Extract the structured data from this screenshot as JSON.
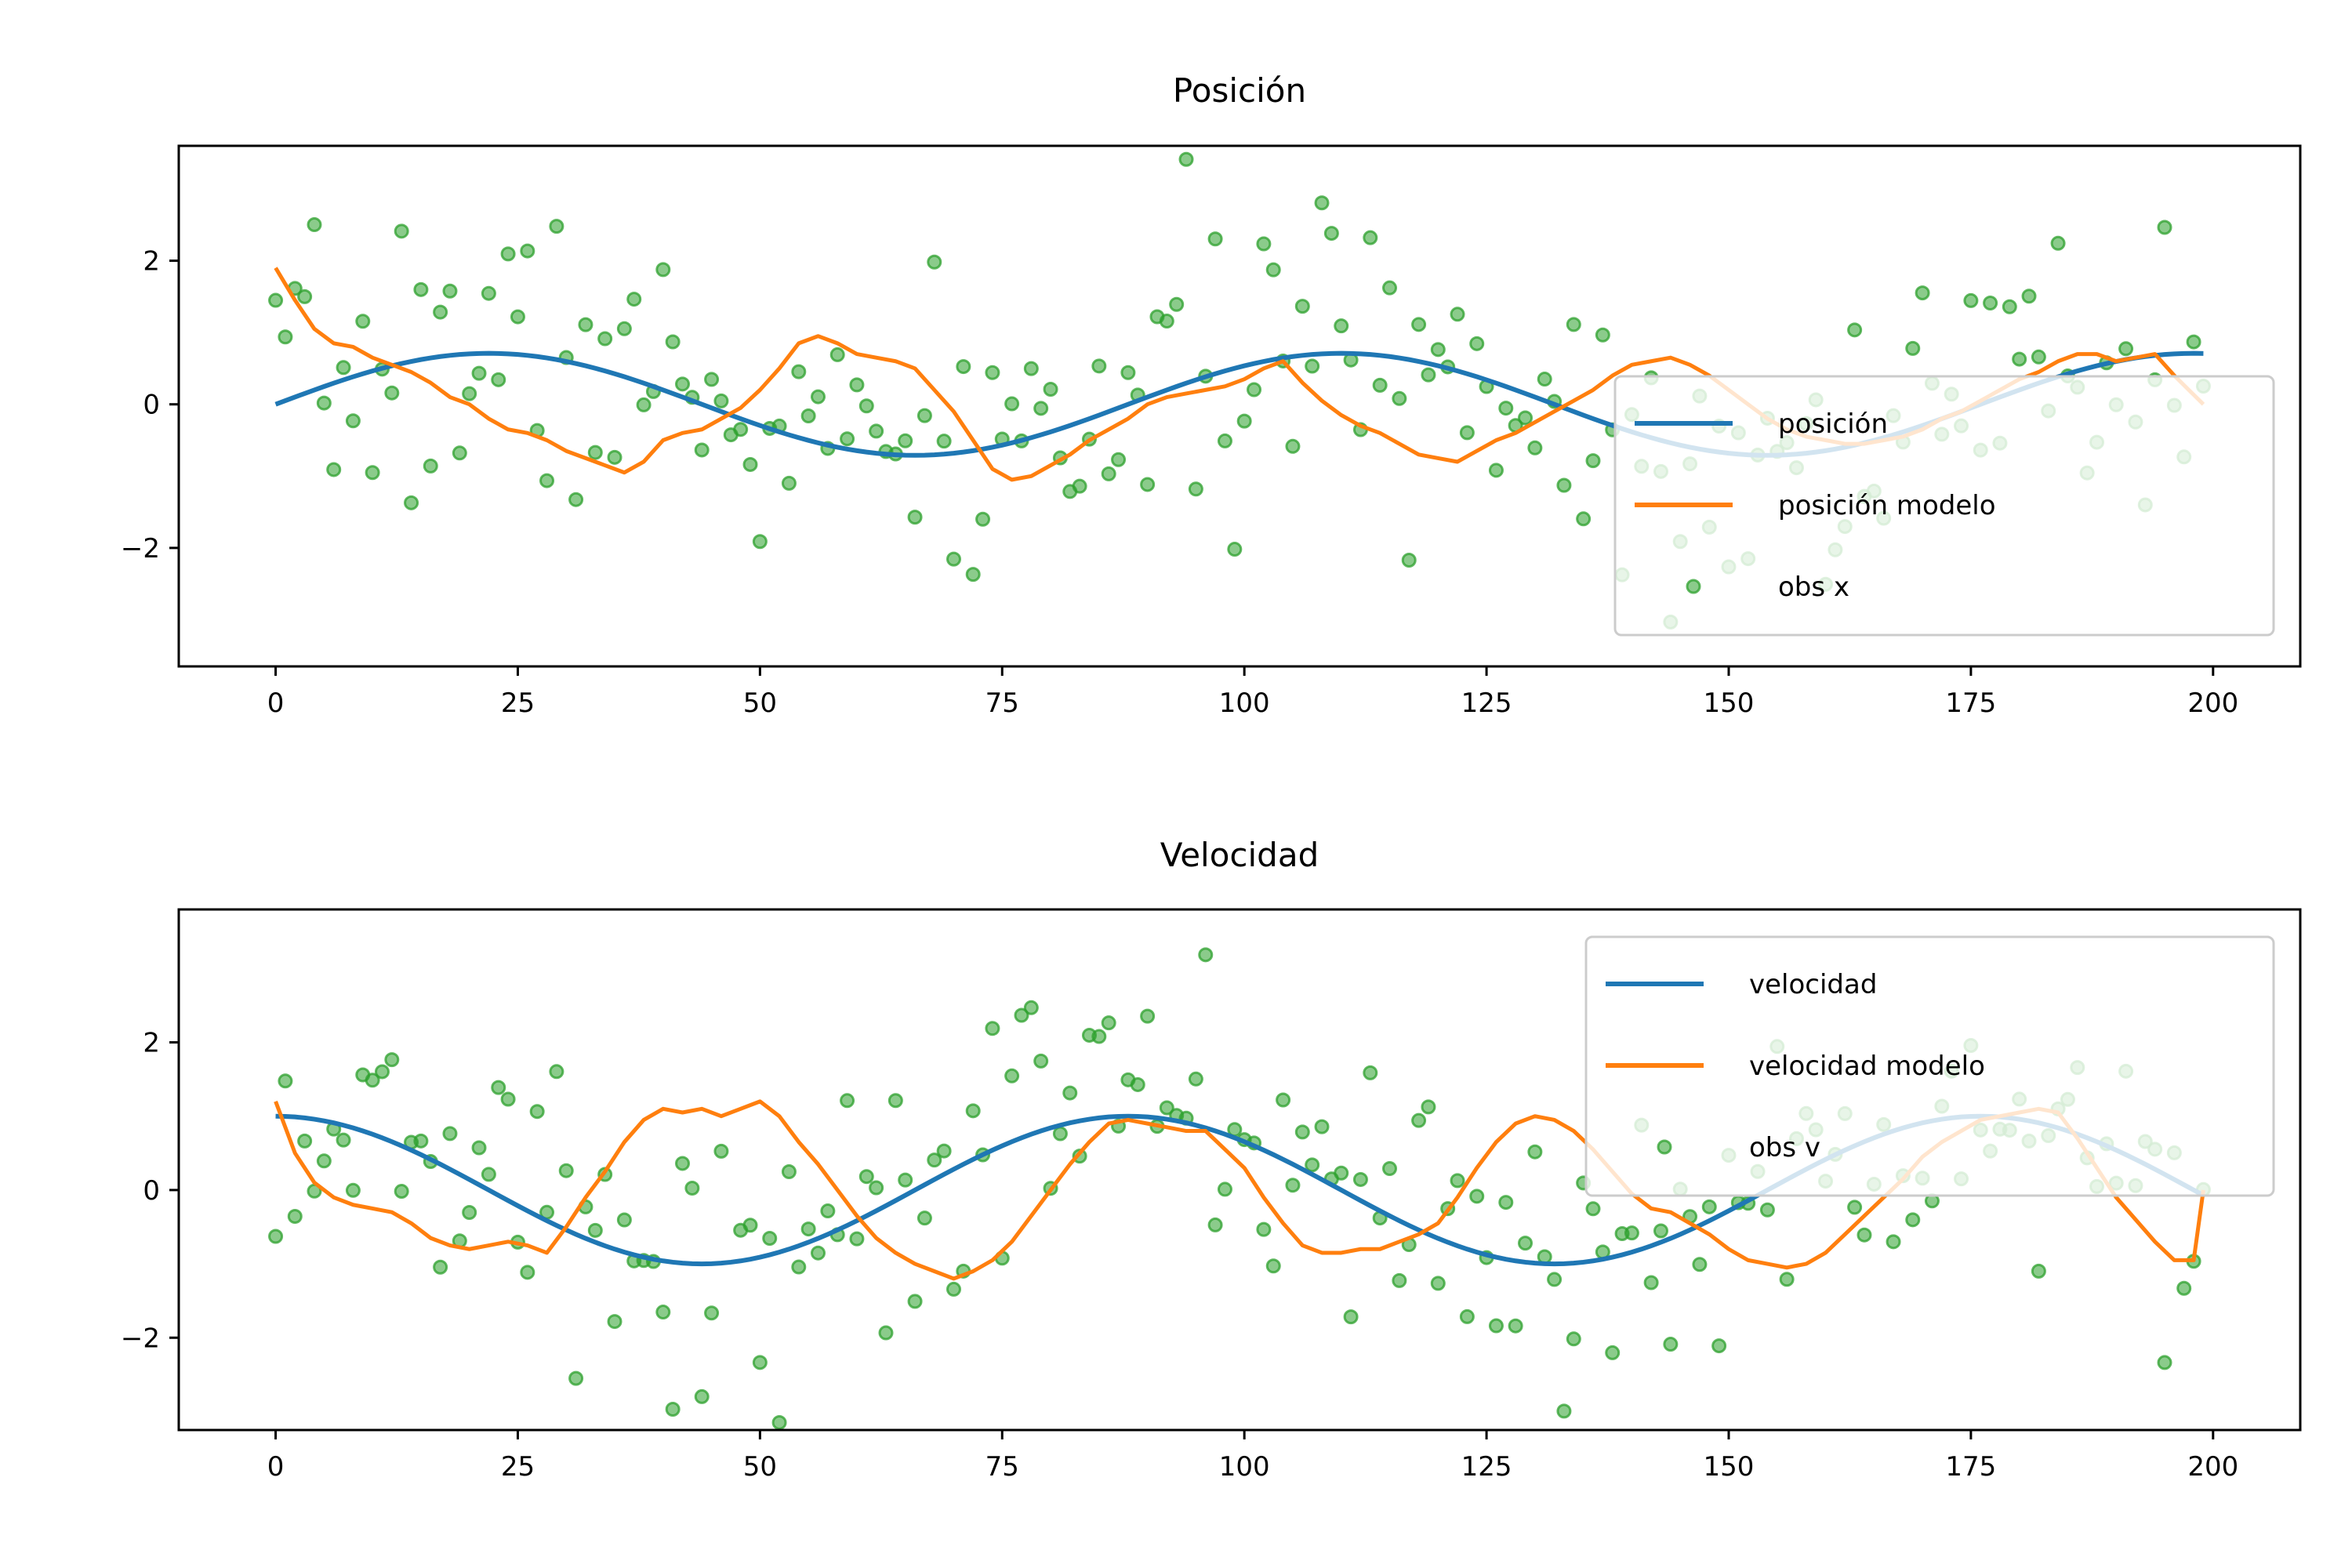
{
  "chart_data": [
    {
      "type": "line",
      "title": "Posición",
      "xlabel": "",
      "ylabel": "",
      "xlim": [
        -10,
        209
      ],
      "ylim": [
        -3.65,
        3.6
      ],
      "xticks": [
        0,
        25,
        50,
        75,
        100,
        125,
        150,
        175,
        200
      ],
      "yticks": [
        -2,
        0,
        2
      ],
      "xtick_labels": [
        "0",
        "25",
        "50",
        "75",
        "100",
        "125",
        "150",
        "175",
        "200"
      ],
      "ytick_labels": [
        "−2",
        "0",
        "2"
      ],
      "grid": false,
      "legend_position": "lower-right",
      "series": [
        {
          "name": "posición",
          "kind": "line",
          "color": "#1f77b4",
          "amplitude": 0.71,
          "period": 88,
          "phase": "sin",
          "n": 200
        },
        {
          "name": "posición modelo",
          "kind": "line",
          "color": "#ff7f0e",
          "x": [
            0,
            2,
            4,
            6,
            8,
            10,
            12,
            14,
            16,
            18,
            20,
            22,
            24,
            26,
            28,
            30,
            32,
            34,
            36,
            38,
            40,
            42,
            44,
            46,
            48,
            50,
            52,
            54,
            56,
            58,
            60,
            62,
            64,
            66,
            68,
            70,
            72,
            74,
            76,
            78,
            80,
            82,
            84,
            86,
            88,
            90,
            92,
            94,
            96,
            98,
            100,
            102,
            104,
            106,
            108,
            110,
            112,
            114,
            116,
            118,
            120,
            122,
            124,
            126,
            128,
            130,
            132,
            134,
            136,
            138,
            140,
            142,
            144,
            146,
            148,
            150,
            152,
            154,
            156,
            158,
            160,
            162,
            164,
            166,
            168,
            170,
            172,
            174,
            176,
            178,
            180,
            182,
            184,
            186,
            188,
            190,
            192,
            194,
            196,
            199
          ],
          "y": [
            1.9,
            1.45,
            1.05,
            0.85,
            0.8,
            0.65,
            0.55,
            0.45,
            0.3,
            0.1,
            0.0,
            -0.2,
            -0.35,
            -0.4,
            -0.5,
            -0.65,
            -0.75,
            -0.85,
            -0.95,
            -0.8,
            -0.5,
            -0.4,
            -0.35,
            -0.2,
            -0.05,
            0.2,
            0.5,
            0.85,
            0.95,
            0.85,
            0.7,
            0.65,
            0.6,
            0.5,
            0.2,
            -0.1,
            -0.5,
            -0.9,
            -1.05,
            -1.0,
            -0.85,
            -0.7,
            -0.5,
            -0.35,
            -0.2,
            0.0,
            0.1,
            0.15,
            0.2,
            0.25,
            0.35,
            0.5,
            0.6,
            0.3,
            0.05,
            -0.15,
            -0.3,
            -0.4,
            -0.55,
            -0.7,
            -0.75,
            -0.8,
            -0.65,
            -0.5,
            -0.4,
            -0.25,
            -0.1,
            0.05,
            0.2,
            0.4,
            0.55,
            0.6,
            0.65,
            0.55,
            0.4,
            0.2,
            0.0,
            -0.2,
            -0.35,
            -0.45,
            -0.5,
            -0.55,
            -0.55,
            -0.5,
            -0.45,
            -0.35,
            -0.2,
            -0.1,
            0.05,
            0.2,
            0.35,
            0.45,
            0.6,
            0.7,
            0.7,
            0.6,
            0.65,
            0.7,
            0.4,
            0.0
          ]
        },
        {
          "name": "obs x",
          "kind": "scatter",
          "color": "#2ca02c",
          "noise_sd": 1.0,
          "seed": 7
        }
      ]
    },
    {
      "type": "line",
      "title": "Velocidad",
      "xlabel": "",
      "ylabel": "",
      "xlim": [
        -10,
        209
      ],
      "ylim": [
        -3.25,
        3.8
      ],
      "xticks": [
        0,
        25,
        50,
        75,
        100,
        125,
        150,
        175,
        200
      ],
      "yticks": [
        -2,
        0,
        2
      ],
      "xtick_labels": [
        "0",
        "25",
        "50",
        "75",
        "100",
        "125",
        "150",
        "175",
        "200"
      ],
      "ytick_labels": [
        "−2",
        "0",
        "2"
      ],
      "grid": false,
      "legend_position": "upper-right",
      "series": [
        {
          "name": "velocidad",
          "kind": "line",
          "color": "#1f77b4",
          "amplitude": 1.0,
          "period": 88,
          "phase": "cos",
          "n": 200
        },
        {
          "name": "velocidad modelo",
          "kind": "line",
          "color": "#ff7f0e",
          "x": [
            0,
            2,
            4,
            6,
            8,
            10,
            12,
            14,
            16,
            18,
            20,
            22,
            24,
            26,
            28,
            30,
            32,
            34,
            36,
            38,
            40,
            42,
            44,
            46,
            48,
            50,
            52,
            54,
            56,
            58,
            60,
            62,
            64,
            66,
            68,
            70,
            72,
            74,
            76,
            78,
            80,
            82,
            84,
            86,
            88,
            90,
            92,
            94,
            96,
            98,
            100,
            102,
            104,
            106,
            108,
            110,
            112,
            114,
            116,
            118,
            120,
            122,
            124,
            126,
            128,
            130,
            132,
            134,
            136,
            138,
            140,
            142,
            144,
            146,
            148,
            150,
            152,
            154,
            156,
            158,
            160,
            162,
            164,
            166,
            168,
            170,
            172,
            174,
            176,
            178,
            180,
            182,
            184,
            186,
            188,
            190,
            192,
            194,
            196,
            198,
            199
          ],
          "y": [
            1.2,
            0.5,
            0.1,
            -0.1,
            -0.2,
            -0.25,
            -0.3,
            -0.45,
            -0.65,
            -0.75,
            -0.8,
            -0.75,
            -0.7,
            -0.75,
            -0.85,
            -0.5,
            -0.1,
            0.25,
            0.65,
            0.95,
            1.1,
            1.05,
            1.1,
            1.0,
            1.1,
            1.2,
            1.0,
            0.65,
            0.35,
            0.0,
            -0.35,
            -0.65,
            -0.85,
            -1.0,
            -1.1,
            -1.2,
            -1.1,
            -0.95,
            -0.7,
            -0.35,
            0.0,
            0.35,
            0.65,
            0.9,
            0.95,
            0.9,
            0.85,
            0.8,
            0.8,
            0.55,
            0.3,
            -0.1,
            -0.45,
            -0.75,
            -0.85,
            -0.85,
            -0.8,
            -0.8,
            -0.7,
            -0.6,
            -0.45,
            -0.1,
            0.3,
            0.65,
            0.9,
            1.0,
            0.95,
            0.8,
            0.55,
            0.25,
            -0.05,
            -0.25,
            -0.3,
            -0.45,
            -0.6,
            -0.8,
            -0.95,
            -1.0,
            -1.05,
            -1.0,
            -0.85,
            -0.6,
            -0.35,
            -0.1,
            0.15,
            0.45,
            0.65,
            0.8,
            0.95,
            1.0,
            1.05,
            1.1,
            1.05,
            0.7,
            0.3,
            -0.1,
            -0.4,
            -0.7,
            -0.95,
            -0.95,
            0.0
          ]
        },
        {
          "name": "obs v",
          "kind": "scatter",
          "color": "#2ca02c",
          "noise_sd": 1.0,
          "seed": 13
        }
      ]
    }
  ]
}
